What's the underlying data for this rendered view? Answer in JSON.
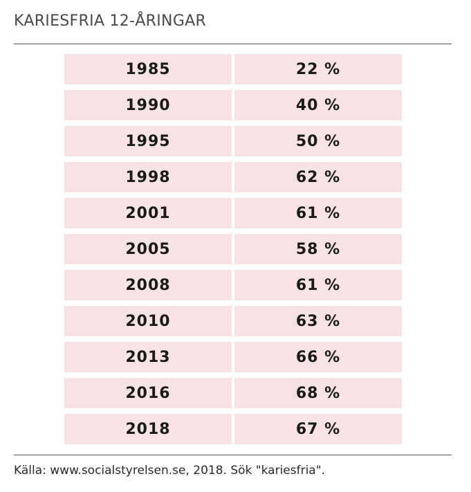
{
  "title": "KARIESFRIA 12-ÅRINGAR",
  "rows": [
    {
      "year": "1985",
      "value": "22 %"
    },
    {
      "year": "1990",
      "value": "40 %"
    },
    {
      "year": "1995",
      "value": "50 %"
    },
    {
      "year": "1998",
      "value": "62 %"
    },
    {
      "year": "2001",
      "value": "61 %"
    },
    {
      "year": "2005",
      "value": "58 %"
    },
    {
      "year": "2008",
      "value": "61 %"
    },
    {
      "year": "2010",
      "value": "63 %"
    },
    {
      "year": "2013",
      "value": "66 %"
    },
    {
      "year": "2016",
      "value": "68 %"
    },
    {
      "year": "2018",
      "value": "67 %"
    }
  ],
  "source": "Källa: www.socialstyrelsen.se, 2018. Sök \"kariesfria\".",
  "colors": {
    "cell_bg": "#f7e3e4",
    "rule": "#555555"
  }
}
